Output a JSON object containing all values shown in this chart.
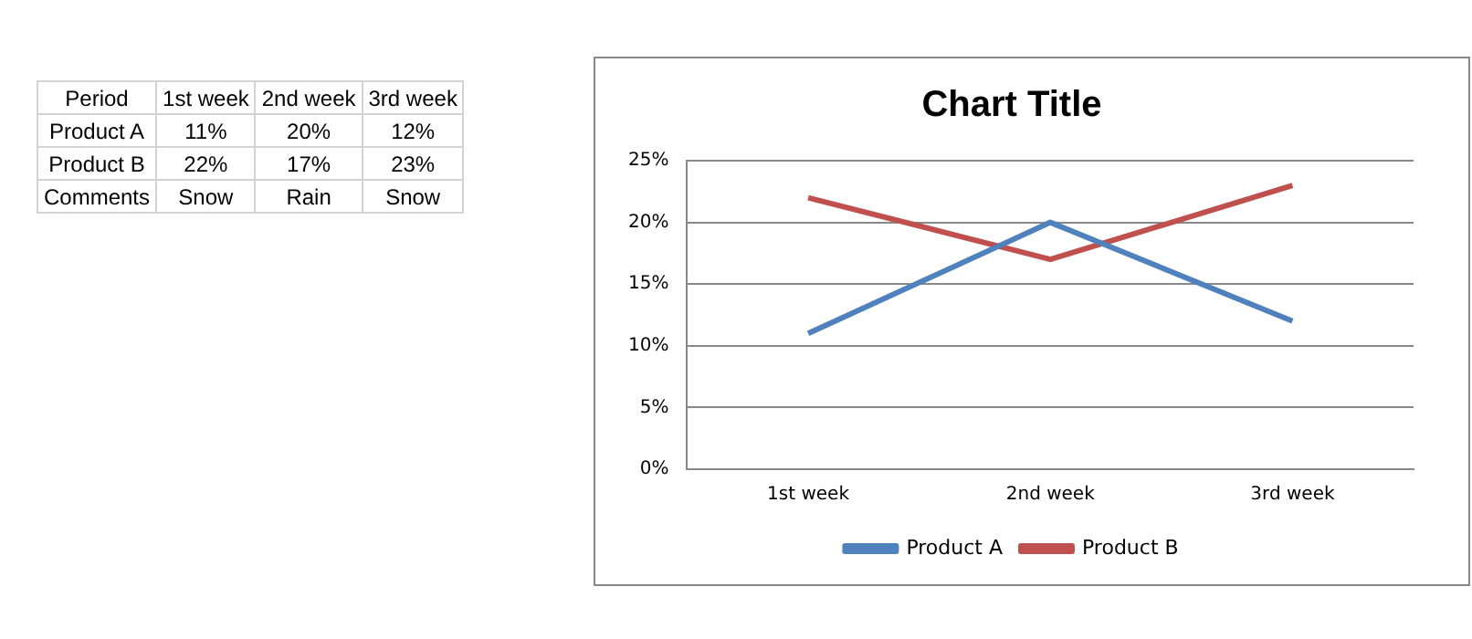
{
  "chart_data": {
    "type": "line",
    "title": "Chart Title",
    "categories": [
      "1st week",
      "2nd week",
      "3rd week"
    ],
    "series": [
      {
        "name": "Product A",
        "color": "#4f81bd",
        "values": [
          11,
          20,
          12
        ]
      },
      {
        "name": "Product B",
        "color": "#c0504d",
        "values": [
          22,
          17,
          23
        ]
      }
    ],
    "ylim": [
      0,
      25
    ],
    "yticks": [
      {
        "value": 0,
        "label": "0%"
      },
      {
        "value": 5,
        "label": "5%"
      },
      {
        "value": 10,
        "label": "10%"
      },
      {
        "value": 15,
        "label": "15%"
      },
      {
        "value": 20,
        "label": "20%"
      },
      {
        "value": 25,
        "label": "25%"
      }
    ],
    "grid": "y",
    "legend": "bottom",
    "marker": "none",
    "line_style": "solid",
    "annotations": [
      "Period",
      "11%",
      "20%",
      "12%",
      "22%",
      "17%",
      "23%",
      "Comments",
      "Snow",
      "Rain",
      "Snow"
    ]
  }
}
